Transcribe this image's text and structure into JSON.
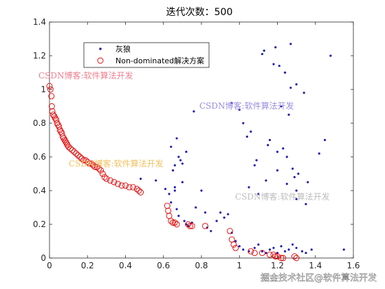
{
  "chart_data": {
    "type": "scatter",
    "title": "迭代次数：500",
    "xlabel": "",
    "ylabel": "",
    "xlim": [
      0,
      1.6
    ],
    "ylim": [
      0,
      1.4
    ],
    "xticks": [
      "0",
      "0.2",
      "0.4",
      "0.6",
      "0.8",
      "1",
      "1.2",
      "1.4",
      "1.6"
    ],
    "yticks": [
      "0",
      "0.2",
      "0.4",
      "0.6",
      "0.8",
      "1",
      "1.2",
      "1.4"
    ],
    "grid": false,
    "legend_position": "top-left",
    "series": [
      {
        "name": "灰狼",
        "marker": "dot",
        "color": "#1f1fb4",
        "x": [
          0.48,
          0.56,
          0.61,
          0.64,
          0.65,
          0.66,
          0.67,
          0.68,
          0.69,
          0.7,
          0.72,
          0.63,
          0.66,
          0.7,
          0.66,
          0.64,
          0.67,
          0.68,
          0.71,
          0.72,
          0.73,
          0.75,
          0.76,
          0.77,
          0.8,
          0.82,
          0.83,
          0.85,
          0.88,
          0.9,
          0.92,
          0.94,
          0.96,
          0.98,
          1.0,
          1.02,
          1.05,
          1.08,
          1.1,
          1.12,
          1.14,
          1.16,
          1.18,
          1.2,
          1.22,
          1.24,
          1.26,
          1.28,
          1.3,
          1.33,
          1.35,
          1.38,
          1.42,
          1.45,
          1.48,
          1.55,
          1.12,
          1.18,
          1.24,
          1.27,
          1.3,
          1.34,
          1.22,
          1.26,
          1.15,
          1.2,
          1.25,
          1.28,
          1.31,
          1.05,
          1.1,
          1.08,
          1.3,
          1.35,
          1.13,
          1.19,
          1.02,
          1.06,
          1.16,
          1.23,
          1.29,
          1.36,
          0.96,
          1.0,
          1.04,
          1.09,
          1.14,
          1.2,
          1.25,
          1.3,
          1.21,
          1.27
        ],
        "y": [
          0.47,
          0.46,
          0.41,
          0.66,
          0.52,
          0.55,
          0.71,
          0.6,
          0.58,
          0.56,
          0.63,
          0.38,
          0.42,
          0.45,
          0.4,
          0.33,
          0.29,
          0.25,
          0.22,
          0.2,
          0.19,
          0.21,
          0.87,
          0.3,
          0.4,
          0.27,
          0.18,
          0.16,
          0.22,
          0.27,
          0.24,
          0.26,
          0.15,
          0.1,
          0.07,
          0.05,
          0.04,
          0.06,
          0.08,
          0.04,
          0.03,
          0.05,
          0.06,
          0.03,
          0.07,
          0.04,
          0.05,
          0.08,
          0.06,
          0.04,
          0.03,
          0.05,
          0.62,
          0.7,
          1.2,
          0.05,
          1.21,
          1.15,
          1.1,
          1.01,
          1.03,
          0.98,
          0.9,
          0.85,
          0.67,
          0.63,
          0.6,
          0.53,
          0.5,
          0.42,
          0.38,
          0.55,
          0.35,
          0.32,
          1.23,
          1.25,
          0.8,
          0.75,
          0.7,
          0.65,
          0.48,
          0.45,
          0.92,
          0.88,
          0.72,
          0.58,
          0.46,
          0.52,
          0.44,
          0.4,
          1.14,
          1.27
        ]
      },
      {
        "name": "Non-dominated解决方案",
        "marker": "circle",
        "color": "#e00000",
        "x": [
          0.0,
          0.005,
          0.01,
          0.012,
          0.015,
          0.02,
          0.025,
          0.03,
          0.035,
          0.04,
          0.045,
          0.05,
          0.055,
          0.06,
          0.065,
          0.07,
          0.075,
          0.08,
          0.085,
          0.09,
          0.095,
          0.1,
          0.11,
          0.12,
          0.13,
          0.14,
          0.15,
          0.16,
          0.17,
          0.18,
          0.19,
          0.2,
          0.21,
          0.22,
          0.23,
          0.24,
          0.25,
          0.26,
          0.27,
          0.28,
          0.29,
          0.3,
          0.32,
          0.34,
          0.36,
          0.38,
          0.4,
          0.42,
          0.44,
          0.46,
          0.47,
          0.48,
          0.62,
          0.625,
          0.63,
          0.64,
          0.65,
          0.66,
          0.67,
          0.73,
          0.74,
          0.75,
          0.82,
          0.95,
          0.96,
          0.97,
          0.98,
          1.06,
          1.08,
          1.12,
          1.16,
          1.18,
          1.19,
          1.2,
          1.22,
          1.23,
          1.29,
          1.3
        ],
        "y": [
          1.02,
          1.0,
          0.96,
          0.9,
          0.87,
          0.85,
          0.84,
          0.83,
          0.82,
          0.8,
          0.79,
          0.78,
          0.76,
          0.75,
          0.74,
          0.72,
          0.71,
          0.7,
          0.69,
          0.68,
          0.67,
          0.66,
          0.65,
          0.64,
          0.63,
          0.62,
          0.61,
          0.6,
          0.59,
          0.58,
          0.58,
          0.57,
          0.56,
          0.56,
          0.55,
          0.54,
          0.54,
          0.53,
          0.52,
          0.5,
          0.48,
          0.47,
          0.46,
          0.45,
          0.44,
          0.43,
          0.43,
          0.42,
          0.42,
          0.41,
          0.4,
          0.39,
          0.31,
          0.28,
          0.25,
          0.22,
          0.21,
          0.21,
          0.2,
          0.2,
          0.19,
          0.19,
          0.19,
          0.16,
          0.11,
          0.08,
          0.06,
          0.04,
          0.03,
          0.03,
          0.02,
          0.02,
          0.01,
          0.01,
          0.0,
          0.0,
          0.01,
          0.0
        ]
      }
    ]
  },
  "watermarks": [
    {
      "text": "CSDN博客:软件算法开发",
      "color": "#f08090"
    },
    {
      "text": "CSDN博客:软件算法开发",
      "color": "#9b8ce0"
    },
    {
      "text": "CSDN博客:软件算法开发",
      "color": "#f2c060"
    },
    {
      "text": "CSDN博客:软件算法开发",
      "color": "#bdbdbd"
    }
  ],
  "footer": "掘金技术社区@软件算法开发"
}
